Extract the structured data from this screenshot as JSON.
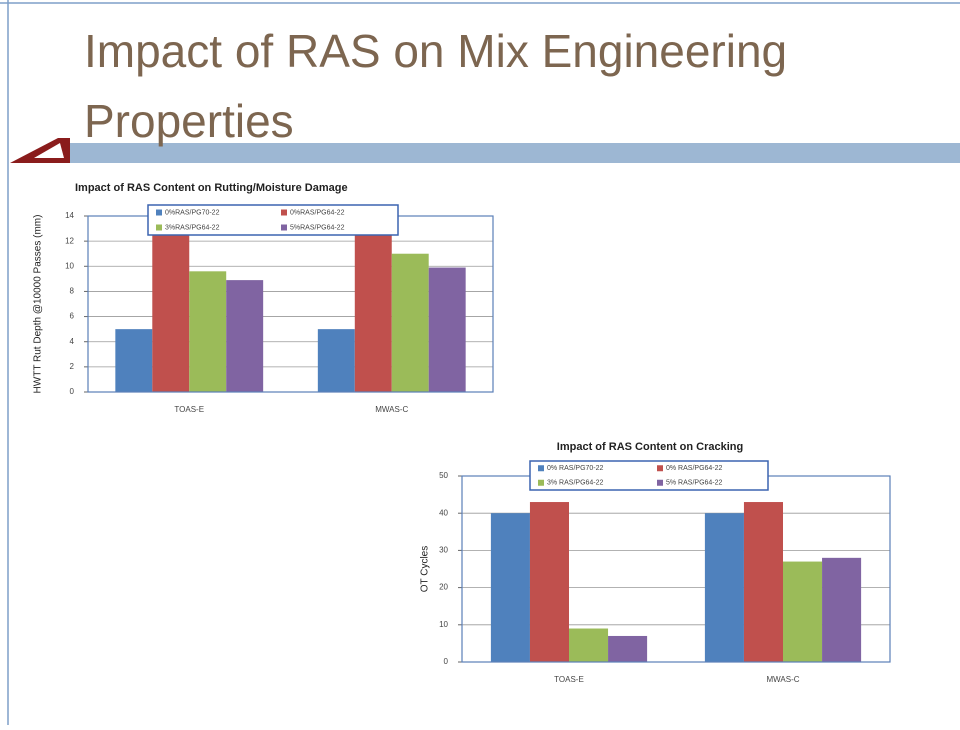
{
  "slide": {
    "title": "Impact of RAS on Mix Engineering Properties"
  },
  "chart_data": [
    {
      "type": "bar",
      "title": "Impact of RAS Content on Rutting/Moisture Damage",
      "y_label": "HWTT Rut Depth @10000 Passes (mm)",
      "categories": [
        "TOAS-E",
        "MWAS-C"
      ],
      "series": [
        {
          "name": "0%RAS/PG70-22",
          "color": "#4f81bd",
          "values": [
            5,
            5
          ]
        },
        {
          "name": "0%RAS/PG64-22",
          "color": "#c0504d",
          "values": [
            13,
            13
          ]
        },
        {
          "name": "3%RAS/PG64-22",
          "color": "#9bbb59",
          "values": [
            9.6,
            11
          ]
        },
        {
          "name": "5%RAS/PG64-22",
          "color": "#8064a2",
          "values": [
            8.9,
            9.9
          ]
        }
      ],
      "ylim": [
        0,
        14
      ],
      "yticks": [
        0,
        2,
        4,
        6,
        8,
        10,
        12,
        14
      ],
      "grid": true
    },
    {
      "type": "bar",
      "title": "Impact of RAS Content on Cracking",
      "y_label": "OT Cycles",
      "categories": [
        "TOAS-E",
        "MWAS-C"
      ],
      "series": [
        {
          "name": "0% RAS/PG70-22",
          "color": "#4f81bd",
          "values": [
            40,
            40
          ]
        },
        {
          "name": "0% RAS/PG64-22",
          "color": "#c0504d",
          "values": [
            43,
            43
          ]
        },
        {
          "name": "3% RAS/PG64-22",
          "color": "#9bbb59",
          "values": [
            9,
            27
          ]
        },
        {
          "name": "5% RAS/PG64-22",
          "color": "#8064a2",
          "values": [
            7,
            28
          ]
        }
      ],
      "ylim": [
        0,
        50
      ],
      "yticks": [
        0,
        10,
        20,
        30,
        40,
        50
      ],
      "grid": true
    }
  ]
}
